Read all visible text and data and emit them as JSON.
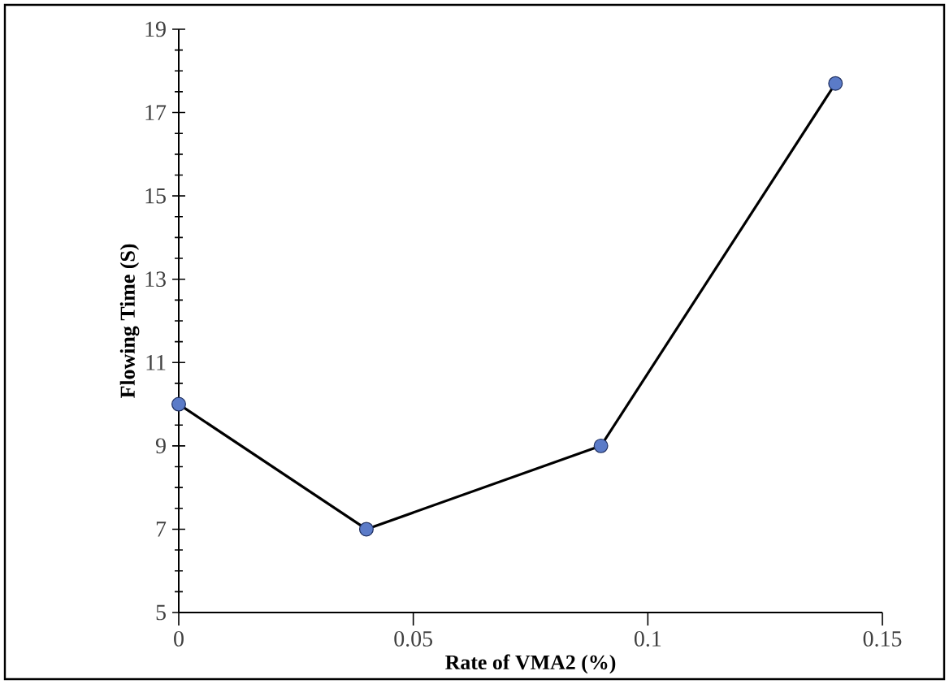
{
  "chart_data": {
    "type": "line",
    "xlabel": "Rate of VMA2 (%)",
    "ylabel": "Flowing Time (S)",
    "x": [
      0,
      0.04,
      0.09,
      0.14
    ],
    "series": [
      {
        "color": "#000000",
        "values": [
          10,
          7,
          9,
          17.7
        ]
      }
    ],
    "marker": "circle",
    "line_style": "solid",
    "grid": false,
    "legend": false,
    "xlim": [
      0,
      0.15
    ],
    "xticks": [
      0,
      0.05,
      0.1,
      0.15
    ],
    "ylim": [
      5,
      19
    ],
    "yticks": [
      5,
      7,
      9,
      11,
      13,
      15,
      17,
      19
    ]
  }
}
